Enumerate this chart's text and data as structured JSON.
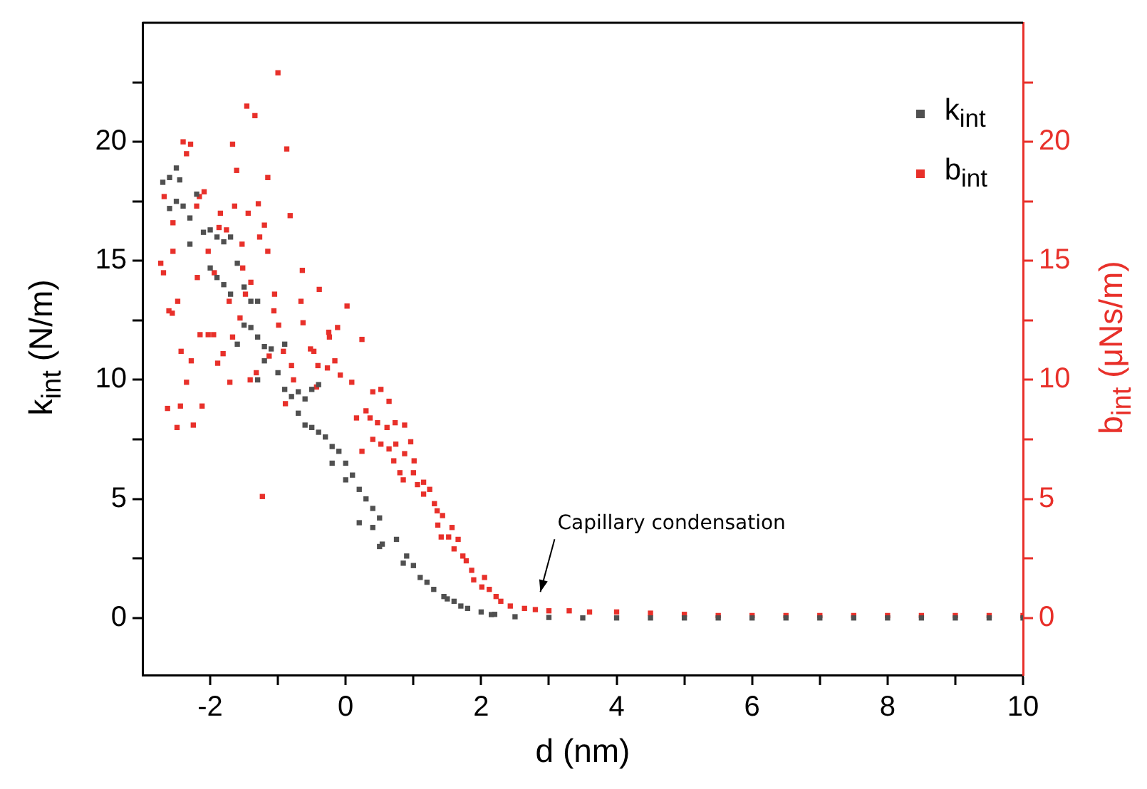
{
  "chart_data": {
    "type": "scatter",
    "xlabel": "d (nm)",
    "ylabel": "k$_{int}$ (N/m)",
    "y2label": "b$_{int}$ (μNs/m)",
    "xlim": [
      -3,
      10
    ],
    "xticks": [
      -2,
      {
        "value": -1,
        "label": null
      },
      0,
      {
        "value": 1,
        "label": null
      },
      2,
      {
        "value": 3,
        "label": null
      },
      4,
      {
        "value": 5,
        "label": null
      },
      6,
      {
        "value": 7,
        "label": null
      },
      8,
      {
        "value": 9,
        "label": null
      },
      10
    ],
    "ylim": [
      -2.4,
      25
    ],
    "yticks": [
      0,
      {
        "value": 2.5,
        "label": null
      },
      5,
      {
        "value": 7.5,
        "label": null
      },
      10,
      {
        "value": 12.5,
        "label": null
      },
      15,
      {
        "value": 17.5,
        "label": null
      },
      20,
      {
        "value": 22.5,
        "label": null
      }
    ],
    "y2lim": [
      -2.4,
      25
    ],
    "y2ticks": [
      0,
      {
        "value": 2.5,
        "label": null
      },
      5,
      {
        "value": 7.5,
        "label": null
      },
      10,
      {
        "value": 12.5,
        "label": null
      },
      15,
      {
        "value": 17.5,
        "label": null
      },
      20,
      {
        "value": 22.5,
        "label": null
      }
    ],
    "marker": "square",
    "legend": "top right",
    "annotations": [
      "Capillary condensation"
    ],
    "series": [
      {
        "name": "k$_{int}$",
        "color": "#505050",
        "x": [
          -2.7,
          -2.6,
          -2.5,
          -2.45,
          -2.6,
          -2.5,
          -2.4,
          -2.3,
          -2.2,
          -2.3,
          -2.1,
          -2.0,
          -1.9,
          -1.8,
          -1.7,
          -2.0,
          -1.9,
          -1.8,
          -1.7,
          -1.6,
          -1.5,
          -1.4,
          -1.3,
          -1.5,
          -1.4,
          -1.6,
          -1.3,
          -1.2,
          -1.2,
          -1.1,
          -1.0,
          -0.9,
          -1.3,
          -0.9,
          -0.8,
          -0.7,
          -0.6,
          -0.5,
          -0.4,
          -0.7,
          -0.6,
          -0.5,
          -0.4,
          -0.3,
          -0.2,
          -0.1,
          0,
          0.1,
          -0.2,
          0,
          0.2,
          0.3,
          0.4,
          0.5,
          0.2,
          0.4,
          0.54,
          0.75,
          0.5,
          0.85,
          0.9,
          1.0,
          1.1,
          1.2,
          1.3,
          1.45,
          1.5,
          1.6,
          1.7,
          1.8,
          2.0,
          2.15,
          2.2,
          2.5,
          3.0,
          3.5,
          4.0,
          4.5,
          5.0,
          5.5,
          6.0,
          6.5,
          7.0,
          7.5,
          8.0,
          8.5,
          9.0,
          9.5,
          10.0
        ],
        "values": [
          18.3,
          18.5,
          18.9,
          18.4,
          17.2,
          17.5,
          17.3,
          16.8,
          17.8,
          15.7,
          16.2,
          16.3,
          16.0,
          15.8,
          16.0,
          14.7,
          14.3,
          14.0,
          13.6,
          14.9,
          13.9,
          13.3,
          13.3,
          12.3,
          12.2,
          11.5,
          11.8,
          11.4,
          10.8,
          11.3,
          10.3,
          11.5,
          10.0,
          9.6,
          9.3,
          9.5,
          9.2,
          9.6,
          9.8,
          8.6,
          8.1,
          8.0,
          7.8,
          7.6,
          7.2,
          7.0,
          6.5,
          6.0,
          6.5,
          5.8,
          5.4,
          5.0,
          4.6,
          4.2,
          4.0,
          3.8,
          3.1,
          3.3,
          3.0,
          2.3,
          2.6,
          2.2,
          1.7,
          1.5,
          1.2,
          0.9,
          0.8,
          0.7,
          0.5,
          0.4,
          0.25,
          0.14,
          0.15,
          0.05,
          0.02,
          0,
          0,
          0,
          0,
          0,
          0,
          0,
          0,
          0,
          0,
          0,
          0,
          0,
          0
        ]
      },
      {
        "name": "b$_{int}$",
        "color": "#e8302a",
        "axis": "y2",
        "x": [
          -1.0,
          -1.46,
          -1.34,
          -2.4,
          -2.29,
          -2.35,
          -1.67,
          -0.87,
          -1.61,
          -1.15,
          -2.68,
          -2.09,
          -2.16,
          -1.29,
          -1.85,
          -1.64,
          -1.44,
          -2.2,
          -0.82,
          -2.55,
          -1.2,
          -1.87,
          -1.76,
          -1.27,
          -1.53,
          -2.55,
          -2.03,
          -1.15,
          -2.73,
          -2.69,
          -1.52,
          -1.94,
          -0.64,
          -2.19,
          -1.4,
          -0.39,
          -1.48,
          -1.05,
          -2.48,
          -1.72,
          -0.66,
          0.02,
          -2.61,
          -2.56,
          -1.06,
          -1.56,
          -0.63,
          -0.99,
          -0.12,
          -0.25,
          0.24,
          -0.24,
          -2.15,
          -2.03,
          -1.95,
          -1.67,
          -0.52,
          -0.47,
          -2.43,
          -2.28,
          -1.81,
          -1.89,
          -1.13,
          -0.92,
          -0.16,
          -0.41,
          -0.27,
          -0.8,
          -0.08,
          -1.32,
          -1.41,
          -2.35,
          -1.71,
          -0.77,
          0.09,
          -0.43,
          -2.63,
          -2.44,
          -2.12,
          -2.25,
          -2.49,
          -1.23,
          -0.89,
          0.4,
          0.52,
          0.64,
          0.3,
          0.16,
          0.36,
          0.47,
          0.61,
          0.73,
          0.87,
          0.24,
          0.4,
          0.52,
          0.74,
          0.64,
          0.96,
          0.87,
          0.71,
          1.01,
          0.8,
          1.0,
          0.85,
          1.06,
          1.15,
          1.24,
          1.15,
          1.31,
          1.35,
          1.43,
          1.36,
          1.57,
          1.41,
          1.52,
          1.66,
          1.6,
          1.73,
          1.78,
          1.86,
          1.89,
          2.05,
          2.01,
          2.12,
          2.22,
          2.29,
          2.43,
          2.64,
          2.8,
          3.0,
          3.3,
          3.6,
          4.0,
          4.5,
          5.0,
          5.5,
          6.0,
          6.5,
          7.0,
          7.5,
          8.0,
          8.5,
          9.0,
          9.5,
          10.0
        ],
        "values": [
          22.9,
          21.5,
          21.1,
          20.0,
          19.9,
          19.5,
          19.9,
          19.7,
          18.8,
          18.5,
          17.7,
          17.9,
          17.7,
          17.4,
          17.0,
          17.3,
          17.0,
          17.3,
          16.9,
          16.6,
          16.5,
          16.4,
          16.3,
          16.0,
          15.7,
          15.4,
          15.4,
          15.4,
          14.9,
          14.5,
          14.7,
          14.5,
          14.6,
          14.3,
          14.1,
          13.8,
          13.6,
          13.6,
          13.3,
          13.3,
          13.3,
          13.1,
          12.9,
          12.8,
          12.9,
          12.6,
          12.4,
          12.3,
          12.2,
          12.0,
          11.7,
          11.8,
          11.9,
          11.9,
          11.9,
          11.8,
          11.3,
          11.2,
          11.2,
          10.8,
          11.1,
          10.7,
          11.0,
          11.2,
          10.8,
          10.6,
          10.5,
          10.6,
          10.2,
          10.3,
          10.0,
          9.9,
          9.9,
          10.0,
          9.9,
          9.7,
          8.8,
          8.9,
          8.9,
          8.1,
          8.0,
          5.1,
          9.0,
          9.5,
          9.6,
          9.1,
          8.7,
          8.4,
          8.4,
          8.2,
          8.0,
          8.2,
          8.1,
          7.0,
          7.5,
          7.3,
          7.3,
          7.1,
          7.4,
          6.9,
          6.6,
          6.6,
          6.1,
          6.1,
          5.8,
          5.6,
          5.7,
          5.4,
          5.2,
          4.8,
          4.5,
          4.3,
          3.9,
          3.8,
          3.4,
          3.4,
          3.3,
          2.9,
          2.6,
          2.4,
          2.0,
          1.6,
          1.7,
          1.3,
          1.2,
          0.9,
          0.7,
          0.5,
          0.4,
          0.35,
          0.3,
          0.3,
          0.25,
          0.25,
          0.2,
          0.15,
          0.1,
          0.1,
          0.1,
          0.1,
          0.1,
          0.1,
          0.1,
          0.1,
          0.1,
          0.1
        ]
      }
    ]
  }
}
